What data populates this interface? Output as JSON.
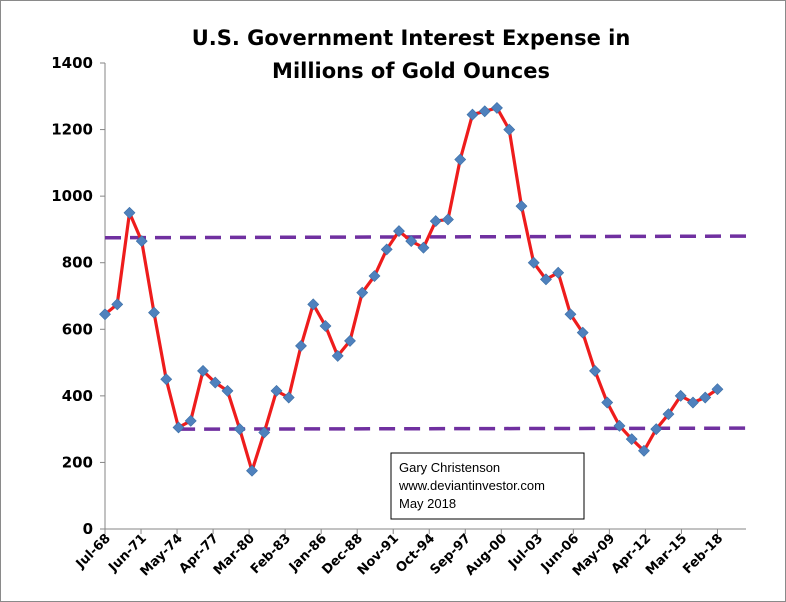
{
  "chart_data": {
    "type": "line",
    "title_line1": "U.S. Government Interest Expense in",
    "title_line2": "Millions of Gold Ounces",
    "xlabel": "",
    "ylabel": "",
    "ylim": [
      0,
      1400
    ],
    "yticks": [
      0,
      200,
      400,
      600,
      800,
      1000,
      1200,
      1400
    ],
    "grid": false,
    "legend": "none",
    "x_tick_labels": [
      "Jul-68",
      "Jun-71",
      "May-74",
      "Apr-77",
      "Mar-80",
      "Feb-83",
      "Jan-86",
      "Dec-88",
      "Nov-91",
      "Oct-94",
      "Sep-97",
      "Aug-00",
      "Jul-03",
      "Jun-06",
      "May-09",
      "Apr-12",
      "Mar-15",
      "Feb-18"
    ],
    "x_start_year": 1968,
    "x_end_year": 2019.9,
    "series": [
      {
        "name": "",
        "line_color": "#ee1c1c",
        "marker_color": "#4f81bd",
        "values": [
          645,
          675,
          950,
          865,
          650,
          450,
          305,
          325,
          475,
          440,
          415,
          300,
          175,
          290,
          415,
          395,
          550,
          675,
          610,
          520,
          565,
          710,
          760,
          840,
          895,
          865,
          845,
          925,
          930,
          1110,
          1245,
          1255,
          1265,
          1200,
          970,
          800,
          750,
          770,
          645,
          590,
          475,
          380,
          310,
          270,
          235,
          300,
          345,
          400,
          380,
          395,
          420
        ]
      }
    ],
    "reference_lines": [
      {
        "color": "#7030a0",
        "from": [
          1968,
          875
        ],
        "to": [
          2019.9,
          880
        ]
      },
      {
        "color": "#7030a0",
        "from": [
          1974,
          300
        ],
        "to": [
          2019.9,
          303
        ]
      }
    ],
    "annotation": [
      "Gary Christenson",
      "www.deviantinvestor.com",
      "May 2018"
    ]
  }
}
